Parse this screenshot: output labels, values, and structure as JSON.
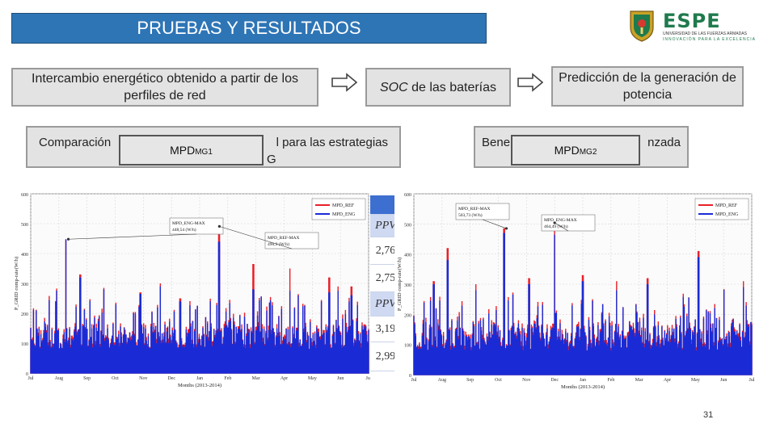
{
  "header": {
    "title": "PRUEBAS Y RESULTADOS",
    "logo": {
      "name": "ESPE",
      "sub1": "UNIVERSIDAD DE LAS FUERZAS ARMADAS",
      "sub2": "INNOVACIÓN PARA LA EXCELENCIA"
    }
  },
  "flow": {
    "box1": "Intercambio energético obtenido a partir de los perfiles de red",
    "box2_italic": "SOC",
    "box2_rest": " de las baterías",
    "box3": "Predicción de la generación de potencia",
    "box4_line1_left": "Comparación",
    "box4_line1_right": "l para las estrategias",
    "box4_line2": "G",
    "box5_left": "Bene",
    "box5_right": "nzada"
  },
  "overlays": {
    "mpd1_main": "MPD",
    "mpd1_sub": "MG1",
    "mpd2_main": "MPD",
    "mpd2_sub": "MG2"
  },
  "table": {
    "rows": [
      {
        "text": "",
        "kind": "dark"
      },
      {
        "text": "PPV",
        "kind": "head"
      },
      {
        "text": "2,76",
        "kind": "val"
      },
      {
        "text": "2,75",
        "kind": "val"
      },
      {
        "text": "PPV",
        "kind": "head"
      },
      {
        "text": "3,19",
        "kind": "val"
      },
      {
        "text": "2,99",
        "kind": "val"
      }
    ]
  },
  "slide_number": "31",
  "colors": {
    "series_ref": "#e8202a",
    "series_eng": "#1a2bd6",
    "title_bg": "#2e75b6"
  },
  "chart_data": [
    {
      "type": "line",
      "ylabel": "P_GRID comp-rate(W/h)",
      "xlabel": "Months (2013-2014)",
      "ylim": [
        0,
        600
      ],
      "yticks": [
        "0",
        "100",
        "200",
        "300",
        "400",
        "500",
        "600"
      ],
      "xticks": [
        "Jul",
        "Aug",
        "Sep",
        "Oct",
        "Nov",
        "Dec",
        "Jan",
        "Feb",
        "Mar",
        "Apr",
        "May",
        "Jun",
        "Jul"
      ],
      "grid": true,
      "legend": "top-right",
      "series": [
        {
          "name": "MPD_REF",
          "color": "#e8202a"
        },
        {
          "name": "MPD_ENG",
          "color": "#1a2bd6"
        }
      ],
      "annotations": [
        {
          "text": "MPD_ENG-MAX",
          "value": "448,54 (W/h)"
        },
        {
          "text": "MPD_REF-MAX",
          "value": "490,9 (W/h)"
        }
      ],
      "baseline_range": [
        80,
        160
      ],
      "peaks": [
        {
          "month": 1.25,
          "ref": 445,
          "eng": 448
        },
        {
          "month": 1.75,
          "ref": 330,
          "eng": 320
        },
        {
          "month": 2.6,
          "ref": 285,
          "eng": 280
        },
        {
          "month": 3.9,
          "ref": 270,
          "eng": 265
        },
        {
          "month": 4.6,
          "ref": 300,
          "eng": 290
        },
        {
          "month": 5.3,
          "ref": 250,
          "eng": 240
        },
        {
          "month": 6.7,
          "ref": 490.9,
          "eng": 440
        },
        {
          "month": 7.9,
          "ref": 365,
          "eng": 280
        },
        {
          "month": 9.2,
          "ref": 350,
          "eng": 275
        },
        {
          "month": 10.6,
          "ref": 320,
          "eng": 270
        },
        {
          "month": 11.4,
          "ref": 290,
          "eng": 260
        }
      ]
    },
    {
      "type": "line",
      "ylabel": "P_GRID comp-rate(W/h)",
      "xlabel": "Months (2013-2014)",
      "ylim": [
        0,
        600
      ],
      "yticks": [
        "0",
        "100",
        "200",
        "300",
        "400",
        "500",
        "600"
      ],
      "xticks": [
        "Jul",
        "Aug",
        "Sep",
        "Oct",
        "Nov",
        "Dec",
        "Jan",
        "Feb",
        "Mar",
        "Apr",
        "May",
        "Jun",
        "Jul"
      ],
      "grid": true,
      "legend": "top-right",
      "series": [
        {
          "name": "MPD_REF",
          "color": "#e8202a"
        },
        {
          "name": "MPD_ENG",
          "color": "#1a2bd6"
        }
      ],
      "annotations": [
        {
          "text": "MPD_REF-MAX",
          "value": "503,73 (W/h)"
        },
        {
          "text": "MPD_ENG-MAX",
          "value": "464,49 (W/h)"
        }
      ],
      "baseline_range": [
        80,
        170
      ],
      "peaks": [
        {
          "month": 0.7,
          "ref": 310,
          "eng": 300
        },
        {
          "month": 1.2,
          "ref": 420,
          "eng": 380
        },
        {
          "month": 2.2,
          "ref": 300,
          "eng": 280
        },
        {
          "month": 3.2,
          "ref": 485,
          "eng": 470
        },
        {
          "month": 4.1,
          "ref": 320,
          "eng": 300
        },
        {
          "month": 5.0,
          "ref": 503.73,
          "eng": 464.49
        },
        {
          "month": 6.0,
          "ref": 330,
          "eng": 310
        },
        {
          "month": 7.2,
          "ref": 310,
          "eng": 280
        },
        {
          "month": 8.3,
          "ref": 320,
          "eng": 300
        },
        {
          "month": 10.1,
          "ref": 410,
          "eng": 390
        },
        {
          "month": 11.7,
          "ref": 310,
          "eng": 290
        }
      ]
    }
  ]
}
